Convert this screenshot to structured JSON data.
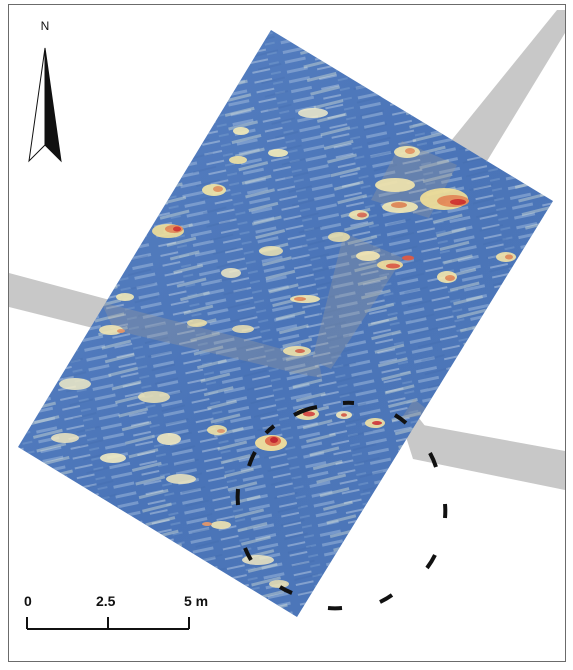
{
  "map": {
    "north_label": "N",
    "scale_labels": [
      "0",
      "2.5",
      "5 m"
    ],
    "colors": {
      "frame_border": "#6b6b6b",
      "background": "#ffffff",
      "path_band": "#c8c8c8",
      "survey_low": "#4a74b8",
      "survey_mid": "#f3f0c8",
      "survey_high": "#d73027",
      "dashed_circle": "#111111",
      "north_arrow": "#111111"
    },
    "icons": [
      "north-arrow-icon"
    ]
  }
}
